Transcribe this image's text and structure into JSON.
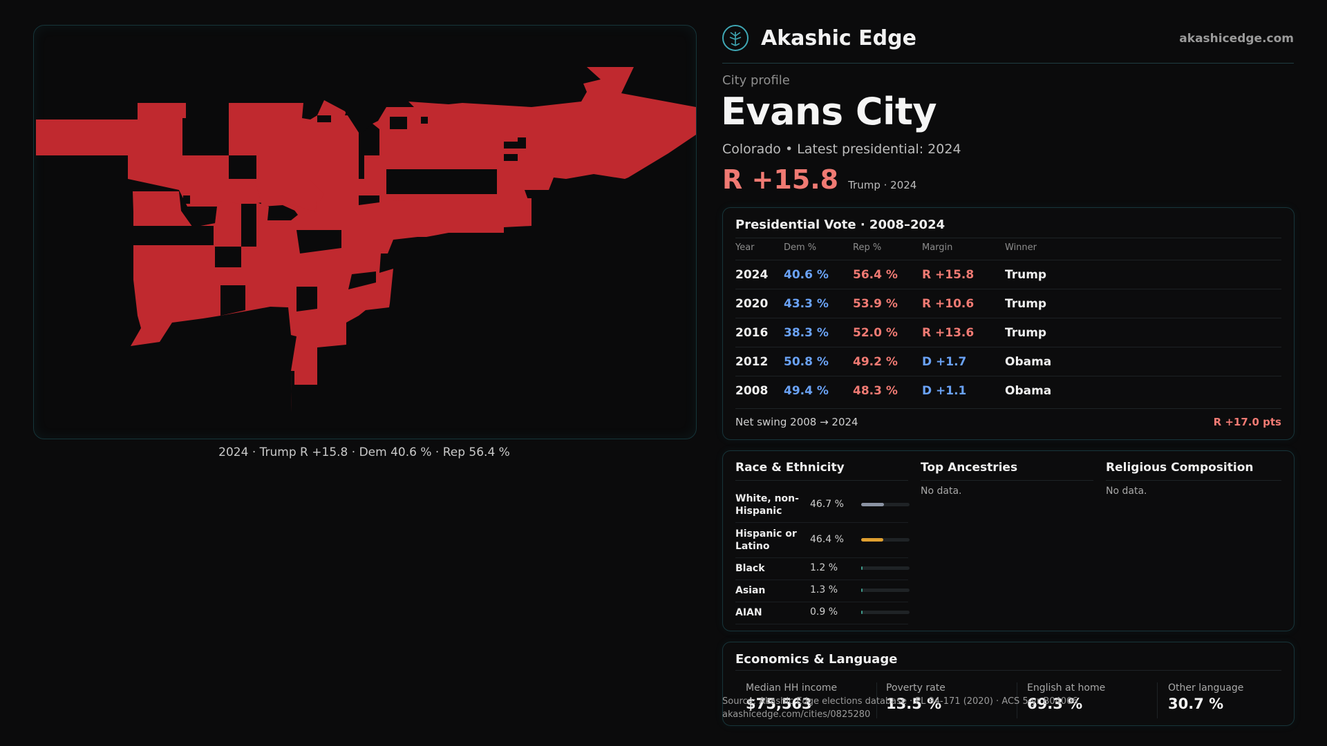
{
  "map": {
    "caption": "2024 · Trump R +15.8 · Dem 40.6 % · Rep 56.4 %",
    "fill_color": "#c0292f"
  },
  "brand": {
    "name": "Akashic Edge",
    "url": "akashicedge.com",
    "logo_icon": "tree-icon",
    "accent": "#3fa7b4"
  },
  "profile": {
    "kicker": "City profile",
    "city": "Evans City",
    "subtitle": "Colorado • Latest presidential: 2024",
    "headline_margin": "R +15.8",
    "headline_note": "Trump · 2024"
  },
  "vote_table": {
    "title": "Presidential Vote · 2008–2024",
    "headers": [
      "Year",
      "Dem %",
      "Rep %",
      "Margin",
      "Winner"
    ],
    "rows": [
      {
        "year": "2024",
        "dem": "40.6 %",
        "rep": "56.4 %",
        "margin": "R +15.8",
        "party": "R",
        "winner": "Trump"
      },
      {
        "year": "2020",
        "dem": "43.3 %",
        "rep": "53.9 %",
        "margin": "R +10.6",
        "party": "R",
        "winner": "Trump"
      },
      {
        "year": "2016",
        "dem": "38.3 %",
        "rep": "52.0 %",
        "margin": "R +13.6",
        "party": "R",
        "winner": "Trump"
      },
      {
        "year": "2012",
        "dem": "50.8 %",
        "rep": "49.2 %",
        "margin": "D +1.7",
        "party": "D",
        "winner": "Obama"
      },
      {
        "year": "2008",
        "dem": "49.4 %",
        "rep": "48.3 %",
        "margin": "D +1.1",
        "party": "D",
        "winner": "Obama"
      }
    ],
    "swing_label": "Net swing 2008 → 2024",
    "swing_value": "R +17.0 pts",
    "colors": {
      "dem": "#6aa2f5",
      "rep": "#f07a73"
    }
  },
  "demographics": {
    "race_title": "Race & Ethnicity",
    "race": [
      {
        "label": "White, non-Hispanic",
        "pct": "46.7 %",
        "value": 46.7,
        "color": "#8b93a3"
      },
      {
        "label": "Hispanic or Latino",
        "pct": "46.4 %",
        "value": 46.4,
        "color": "#e0a030"
      },
      {
        "label": "Black",
        "pct": "1.2 %",
        "value": 1.2,
        "color": "#3f9a8a"
      },
      {
        "label": "Asian",
        "pct": "1.3 %",
        "value": 1.3,
        "color": "#3f9a8a"
      },
      {
        "label": "AIAN",
        "pct": "0.9 %",
        "value": 0.9,
        "color": "#3f9a8a"
      }
    ],
    "ancestries_title": "Top Ancestries",
    "ancestries_empty": "No data.",
    "religion_title": "Religious Composition",
    "religion_empty": "No data."
  },
  "economics": {
    "title": "Economics & Language",
    "cells": [
      {
        "label": "Median HH income",
        "value": "$75,563"
      },
      {
        "label": "Poverty rate",
        "value": "13.5 %"
      },
      {
        "label": "English at home",
        "value": "69.3 %"
      },
      {
        "label": "Other language",
        "value": "30.7 %"
      }
    ]
  },
  "footer": {
    "source": "Source: Akashic Edge elections database · PL 94-171 (2020) · ACS 5-yr B04006",
    "link": "akashicedge.com/cities/0825280"
  }
}
